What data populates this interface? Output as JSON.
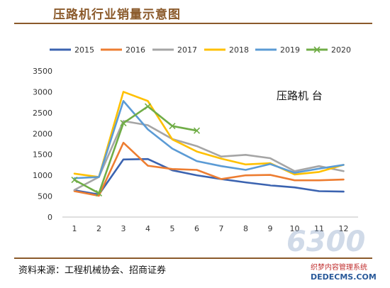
{
  "page": {
    "title": "压路机行业销量示意图",
    "source": "资料来源：工程机械协会、招商证券",
    "watermark": {
      "brand": "6300",
      "line1": "织梦内容管理系统",
      "line2": "DEDECMS.COM"
    }
  },
  "chart_data": {
    "type": "line",
    "annotation": "压路机 台",
    "categories": [
      "1",
      "2",
      "3",
      "4",
      "5",
      "6",
      "7",
      "8",
      "9",
      "10",
      "11",
      "12"
    ],
    "yticks": [
      "0",
      "500",
      "1000",
      "1500",
      "2000",
      "2500",
      "3000",
      "3500"
    ],
    "ylim": [
      0,
      3500
    ],
    "legend_position": "top",
    "series": [
      {
        "name": "2015",
        "color": "#3b63b0",
        "values": [
          640,
          540,
          1380,
          1390,
          1120,
          1000,
          910,
          830,
          760,
          710,
          620,
          610
        ]
      },
      {
        "name": "2016",
        "color": "#ed7d31",
        "values": [
          620,
          510,
          1780,
          1230,
          1150,
          1130,
          910,
          1000,
          1010,
          880,
          880,
          900
        ]
      },
      {
        "name": "2017",
        "color": "#a5a5a5",
        "values": [
          650,
          960,
          2300,
          2200,
          1870,
          1700,
          1450,
          1490,
          1410,
          1100,
          1220,
          1100
        ]
      },
      {
        "name": "2018",
        "color": "#ffc000",
        "values": [
          1040,
          960,
          3000,
          2780,
          1860,
          1570,
          1400,
          1260,
          1290,
          1020,
          1080,
          1250
        ]
      },
      {
        "name": "2019",
        "color": "#5b9bd5",
        "values": [
          930,
          960,
          2780,
          2100,
          1640,
          1340,
          1220,
          1130,
          1270,
          1060,
          1160,
          1250
        ]
      },
      {
        "name": "2020",
        "color": "#70ad47",
        "marker": "x",
        "values": [
          890,
          570,
          2250,
          2650,
          2180,
          2070,
          null,
          null,
          null,
          null,
          null,
          null
        ]
      }
    ]
  }
}
